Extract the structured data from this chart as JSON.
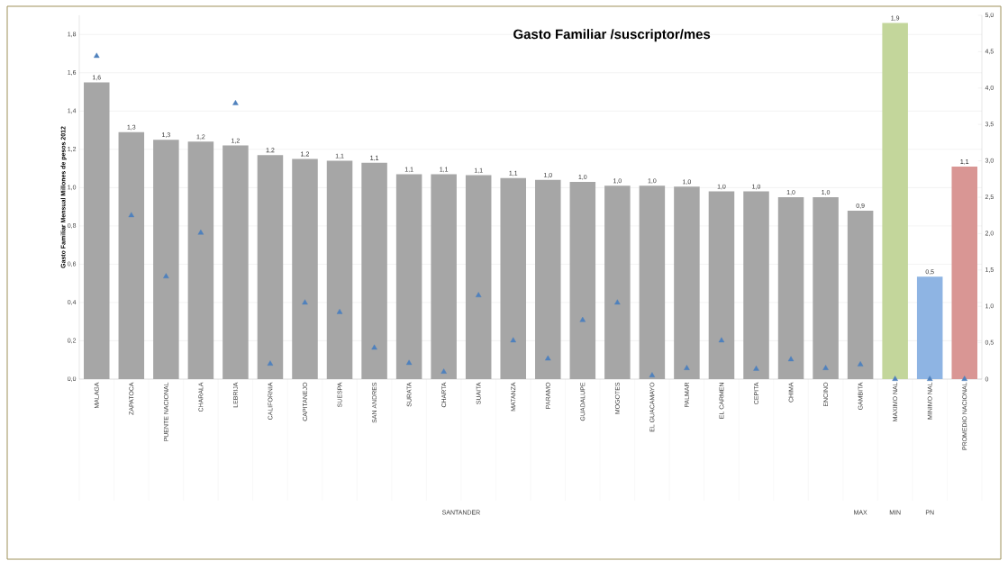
{
  "chart_data": {
    "type": "bar",
    "title": "Gasto Familiar /suscriptor/mes",
    "ylabel": "Gasto Familiar Mensual Millones de pesos 2012",
    "categories": [
      "MALAGA",
      "ZAPATOCA",
      "PUENTE NACIONAL",
      "CHARALA",
      "LEBRIJA",
      "CALIFORNIA",
      "CAPITANEJO",
      "SUESPA",
      "SAN ANDRES",
      "SURATA",
      "CHARTA",
      "SUAITA",
      "MATANZA",
      "PARAMO",
      "GUADALUPE",
      "MOGOTES",
      "EL GUACAMAYO",
      "PALMAR",
      "EL CARMEN",
      "CEPITA",
      "CHIMA",
      "ENCINO",
      "GAMBITA",
      "MAXIMO NAL",
      "MINIMO NAL",
      "PROMEDIO NACIONAL"
    ],
    "series": [
      {
        "colors": [
          "#a6a6a6",
          "#a6a6a6",
          "#a6a6a6",
          "#a6a6a6",
          "#a6a6a6",
          "#a6a6a6",
          "#a6a6a6",
          "#a6a6a6",
          "#a6a6a6",
          "#a6a6a6",
          "#a6a6a6",
          "#a6a6a6",
          "#a6a6a6",
          "#a6a6a6",
          "#a6a6a6",
          "#a6a6a6",
          "#a6a6a6",
          "#a6a6a6",
          "#a6a6a6",
          "#a6a6a6",
          "#a6a6a6",
          "#a6a6a6",
          "#a6a6a6",
          "#c3d69b",
          "#8eb4e3",
          "#d99694"
        ],
        "values": [
          1.55,
          1.29,
          1.25,
          1.24,
          1.22,
          1.17,
          1.15,
          1.14,
          1.13,
          1.07,
          1.07,
          1.065,
          1.05,
          1.04,
          1.03,
          1.01,
          1.01,
          1.005,
          0.98,
          0.98,
          0.95,
          0.95,
          0.88,
          1.86,
          0.535,
          1.11
        ],
        "value_labels": [
          "1,6",
          "1,3",
          "1,3",
          "1,2",
          "1,2",
          "1,2",
          "1,2",
          "1,1",
          "1,1",
          "1,1",
          "1,1",
          "1,1",
          "1,1",
          "1,0",
          "1,0",
          "1,0",
          "1,0",
          "1,0",
          "1,0",
          "1,0",
          "1,0",
          "1,0",
          "0,9",
          "1,9",
          "0,5",
          "1,1"
        ]
      },
      {
        "type": "scatter",
        "axis": "y2",
        "color": "#4f81bd",
        "marker": "triangle",
        "values": [
          4.44,
          2.25,
          1.41,
          2.01,
          3.79,
          0.21,
          1.05,
          0.92,
          0.43,
          0.22,
          0.1,
          1.15,
          0.53,
          0.28,
          0.81,
          1.05,
          0.05,
          0.15,
          0.53,
          0.14,
          0.27,
          0.15,
          0.2,
          0,
          0,
          0
        ]
      }
    ],
    "ylim": [
      0,
      1.9
    ],
    "yticks": [
      {
        "value": 0,
        "label": "0,0"
      },
      {
        "value": 0.2,
        "label": "0,2"
      },
      {
        "value": 0.4,
        "label": "0,4"
      },
      {
        "value": 0.6,
        "label": "0,6"
      },
      {
        "value": 0.8,
        "label": "0,8"
      },
      {
        "value": 1.0,
        "label": "1,0"
      },
      {
        "value": 1.2,
        "label": "1,2"
      },
      {
        "value": 1.4,
        "label": "1,4"
      },
      {
        "value": 1.6,
        "label": "1,6"
      },
      {
        "value": 1.8,
        "label": "1,8"
      }
    ],
    "y2lim": [
      0,
      5
    ],
    "y2ticks": [
      0,
      {
        "value": 0.5,
        "label": "0,5"
      },
      {
        "value": 1.0,
        "label": "1,0"
      },
      {
        "value": 1.5,
        "label": "1,5"
      },
      {
        "value": 2.0,
        "label": "2,0"
      },
      {
        "value": 2.5,
        "label": "2,5"
      },
      {
        "value": 3.0,
        "label": "3,0"
      },
      {
        "value": 3.5,
        "label": "3,5"
      },
      {
        "value": 4.0,
        "label": "4,0"
      },
      {
        "value": 4.5,
        "label": "4,5"
      },
      {
        "value": 5.0,
        "label": "5,0"
      }
    ],
    "grid": "y",
    "legend": false,
    "annotations": [
      "SANTANDER",
      "MAX",
      "MIN",
      "PN"
    ]
  }
}
